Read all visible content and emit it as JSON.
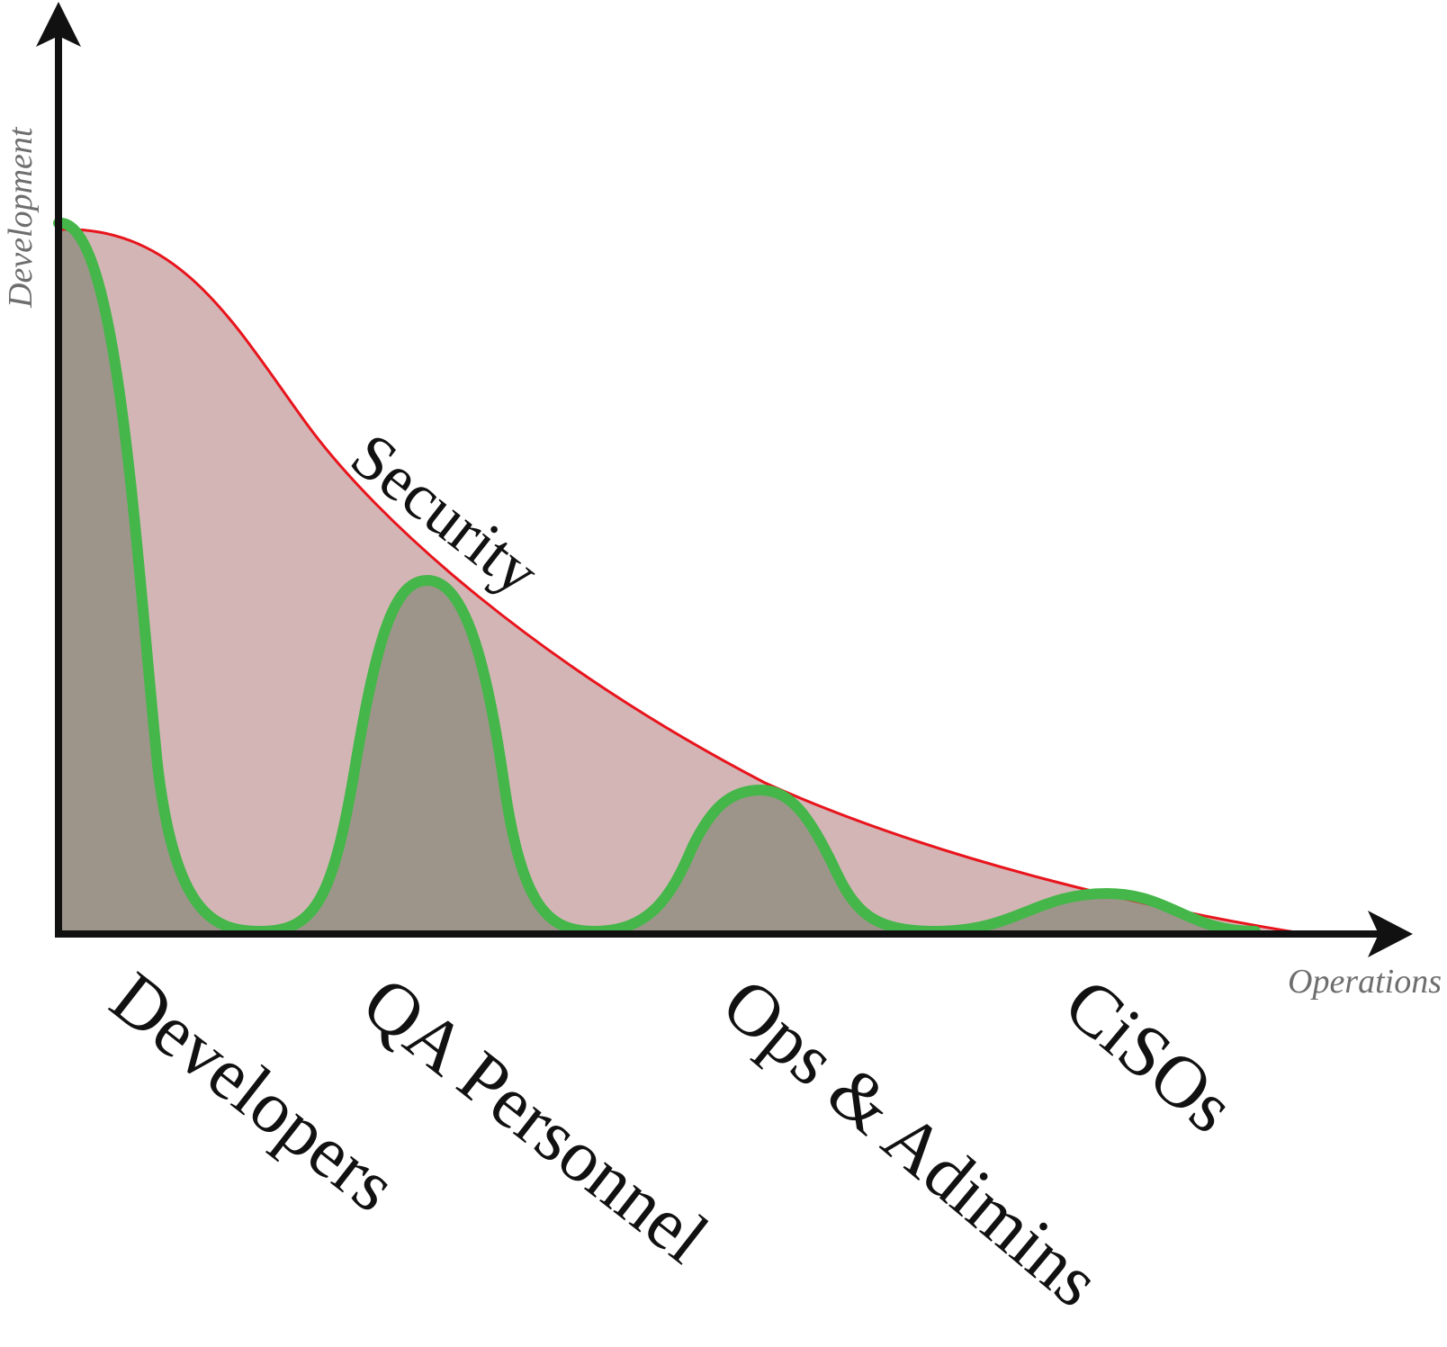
{
  "axes": {
    "y_label": "Development",
    "x_label": "Operations"
  },
  "curve_label": "Security",
  "stages": [
    "Developers",
    "QA Personnel",
    "Ops & Adimins",
    "CiSOs"
  ]
}
